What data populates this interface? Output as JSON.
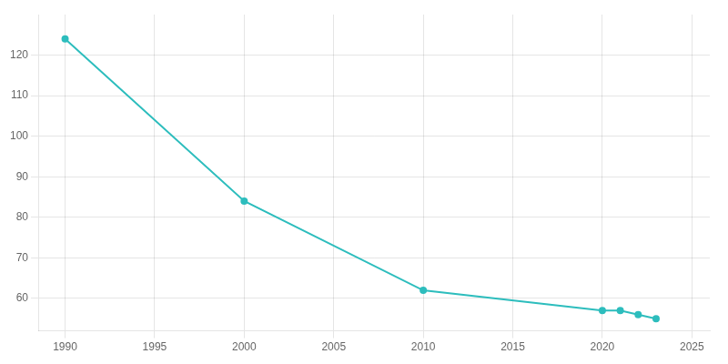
{
  "chart_data": {
    "type": "line",
    "x": [
      1990,
      2000,
      2010,
      2020,
      2021,
      2022,
      2023
    ],
    "values": [
      124,
      84,
      62,
      57,
      57,
      56,
      55
    ],
    "color": "#2DBDBD",
    "marker": "circle",
    "xlim": [
      1988.5,
      2026
    ],
    "ylim": [
      52,
      130
    ],
    "xticks": [
      1990,
      1995,
      2000,
      2005,
      2010,
      2015,
      2020,
      2025
    ],
    "yticks": [
      60,
      70,
      80,
      90,
      100,
      110,
      120
    ],
    "grid": true
  }
}
